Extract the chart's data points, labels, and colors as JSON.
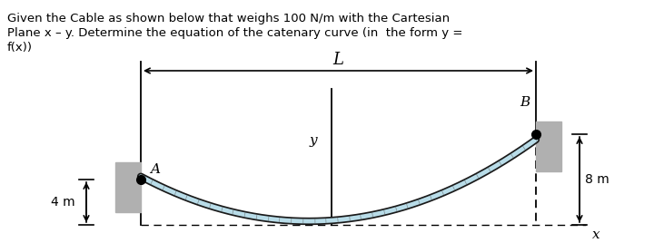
{
  "title_line1": "Given the Cable as shown below that weighs 100 N/m with the Cartesian",
  "title_line2": "Plane x – y. Determine the equation of the catenary curve (in  the form y =",
  "title_line3": "f(x))",
  "bg_color": "#ffffff",
  "cable_color_outer": "#1a1a1a",
  "cable_color_inner": "#b8dce8",
  "wall_color": "#b0b0b0",
  "L_label": "L",
  "y_label": "y",
  "x_label": "x",
  "A_label": "A",
  "B_label": "B",
  "dim_4m": "4 m",
  "dim_8m": "8 m",
  "title_fontsize": 9.5,
  "label_fontsize": 11
}
